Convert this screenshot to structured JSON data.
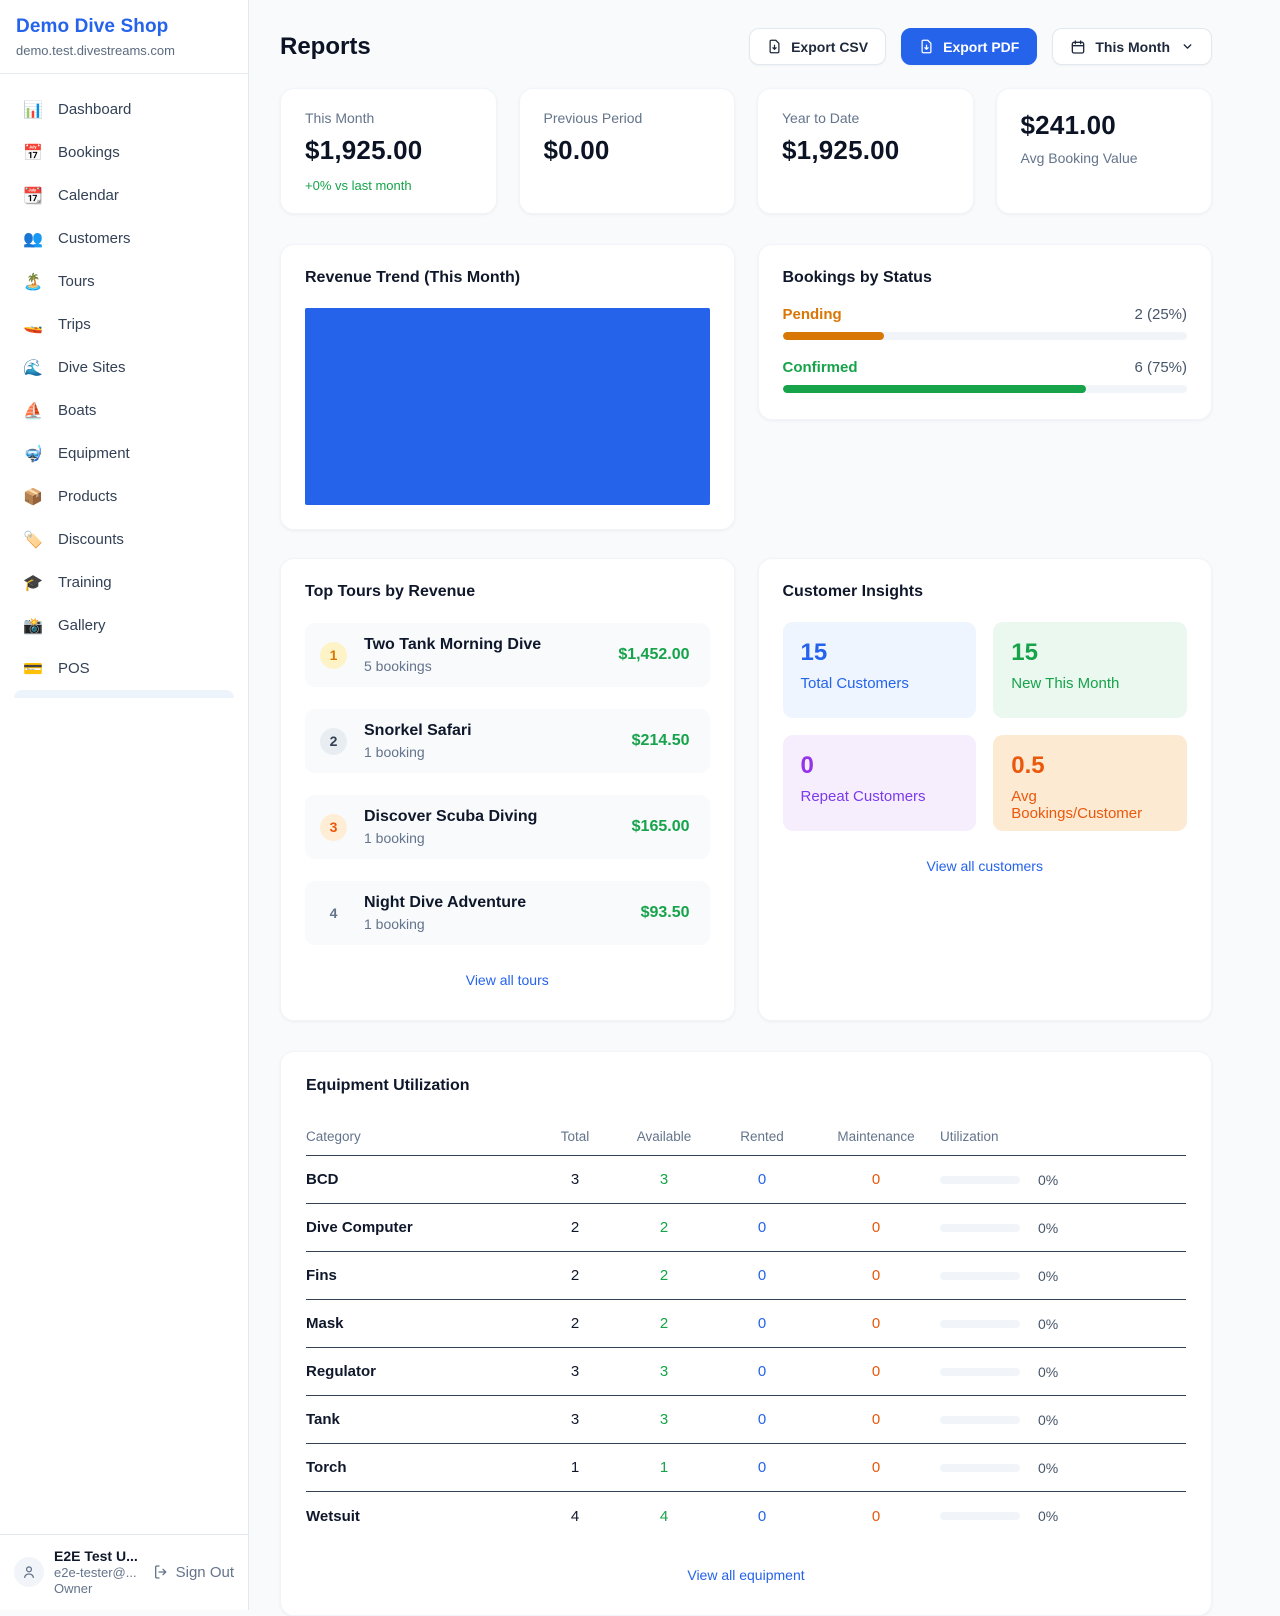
{
  "colors": {
    "accent": "#2563eb",
    "green": "#16a34a",
    "amber": "#d97706",
    "orange": "#ea580c",
    "purple": "#9333ea"
  },
  "sidebar": {
    "title": "Demo Dive Shop",
    "subtitle": "demo.test.divestreams.com",
    "items": [
      {
        "icon": "📊",
        "label": "Dashboard"
      },
      {
        "icon": "📅",
        "label": "Bookings"
      },
      {
        "icon": "📆",
        "label": "Calendar"
      },
      {
        "icon": "👥",
        "label": "Customers"
      },
      {
        "icon": "🏝️",
        "label": "Tours"
      },
      {
        "icon": "🚤",
        "label": "Trips"
      },
      {
        "icon": "🌊",
        "label": "Dive Sites"
      },
      {
        "icon": "⛵",
        "label": "Boats"
      },
      {
        "icon": "🤿",
        "label": "Equipment"
      },
      {
        "icon": "📦",
        "label": "Products"
      },
      {
        "icon": "🏷️",
        "label": "Discounts"
      },
      {
        "icon": "🎓",
        "label": "Training"
      },
      {
        "icon": "📸",
        "label": "Gallery"
      },
      {
        "icon": "💳",
        "label": "POS"
      }
    ],
    "user": {
      "name": "E2E Test U...",
      "email": "e2e-tester@...",
      "role": "Owner",
      "sign_out_label": "Sign Out"
    }
  },
  "header": {
    "title": "Reports",
    "export_csv_label": "Export CSV",
    "export_pdf_label": "Export PDF",
    "period_label": "This Month"
  },
  "stats": {
    "this_month": {
      "label": "This Month",
      "value": "$1,925.00",
      "delta": "+0% vs last month",
      "delta_color": "#16a34a"
    },
    "previous_period": {
      "label": "Previous Period",
      "value": "$0.00"
    },
    "year_to_date": {
      "label": "Year to Date",
      "value": "$1,925.00"
    },
    "avg_booking": {
      "value": "$241.00",
      "label": "Avg Booking Value"
    }
  },
  "revenue_trend": {
    "title": "Revenue Trend (This Month)",
    "bar_color": "#2563eb"
  },
  "bookings_by_status": {
    "title": "Bookings by Status",
    "rows": [
      {
        "label": "Pending",
        "value": "2 (25%)",
        "pct": 25,
        "color": "#d97706"
      },
      {
        "label": "Confirmed",
        "value": "6 (75%)",
        "pct": 75,
        "color": "#16a34a"
      }
    ]
  },
  "top_tours": {
    "title": "Top Tours by Revenue",
    "items": [
      {
        "rank": "1",
        "name": "Two Tank Morning Dive",
        "bookings": "5 bookings",
        "amount": "$1,452.00",
        "badge_bg": "#fef3c7",
        "badge_fg": "#d97706"
      },
      {
        "rank": "2",
        "name": "Snorkel Safari",
        "bookings": "1 booking",
        "amount": "$214.50",
        "badge_bg": "#e8edf2",
        "badge_fg": "#334155"
      },
      {
        "rank": "3",
        "name": "Discover Scuba Diving",
        "bookings": "1 booking",
        "amount": "$165.00",
        "badge_bg": "#ffedd5",
        "badge_fg": "#ea580c"
      },
      {
        "rank": "4",
        "name": "Night Dive Adventure",
        "bookings": "1 booking",
        "amount": "$93.50",
        "badge_bg": "transparent",
        "badge_fg": "#64748b"
      }
    ],
    "view_all": "View all tours"
  },
  "customer_insights": {
    "title": "Customer Insights",
    "tiles": [
      {
        "value": "15",
        "label": "Total Customers",
        "bg": "#eef5fe",
        "fg": "#2563eb",
        "label_fg": "#2563eb"
      },
      {
        "value": "15",
        "label": "New This Month",
        "bg": "#eaf8f0",
        "fg": "#16a34a",
        "label_fg": "#16a34a"
      },
      {
        "value": "0",
        "label": "Repeat Customers",
        "bg": "#f6eefc",
        "fg": "#9333ea",
        "label_fg": "#7c3aed"
      },
      {
        "value": "0.5",
        "label": "Avg Bookings/Customer",
        "bg": "#fdead3",
        "fg": "#ea580c",
        "label_fg": "#ea580c"
      }
    ],
    "view_all": "View all customers"
  },
  "equipment": {
    "title": "Equipment Utilization",
    "columns": [
      "Category",
      "Total",
      "Available",
      "Rented",
      "Maintenance",
      "Utilization"
    ],
    "rows": [
      {
        "category": "BCD",
        "total": "3",
        "available": "3",
        "rented": "0",
        "maintenance": "0",
        "utilization": "0%",
        "utilization_pct": 0
      },
      {
        "category": "Dive Computer",
        "total": "2",
        "available": "2",
        "rented": "0",
        "maintenance": "0",
        "utilization": "0%",
        "utilization_pct": 0
      },
      {
        "category": "Fins",
        "total": "2",
        "available": "2",
        "rented": "0",
        "maintenance": "0",
        "utilization": "0%",
        "utilization_pct": 0
      },
      {
        "category": "Mask",
        "total": "2",
        "available": "2",
        "rented": "0",
        "maintenance": "0",
        "utilization": "0%",
        "utilization_pct": 0
      },
      {
        "category": "Regulator",
        "total": "3",
        "available": "3",
        "rented": "0",
        "maintenance": "0",
        "utilization": "0%",
        "utilization_pct": 0
      },
      {
        "category": "Tank",
        "total": "3",
        "available": "3",
        "rented": "0",
        "maintenance": "0",
        "utilization": "0%",
        "utilization_pct": 0
      },
      {
        "category": "Torch",
        "total": "1",
        "available": "1",
        "rented": "0",
        "maintenance": "0",
        "utilization": "0%",
        "utilization_pct": 0
      },
      {
        "category": "Wetsuit",
        "total": "4",
        "available": "4",
        "rented": "0",
        "maintenance": "0",
        "utilization": "0%",
        "utilization_pct": 0
      }
    ],
    "view_all": "View all equipment"
  }
}
